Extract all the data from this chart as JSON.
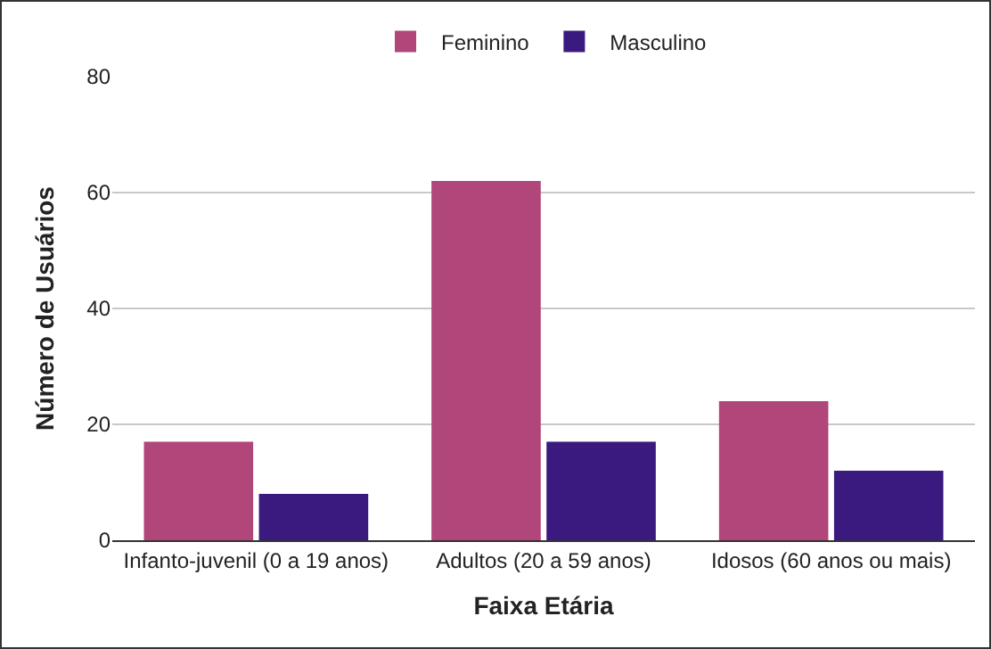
{
  "chart_data": {
    "type": "bar",
    "xlabel": "Faixa Etária",
    "ylabel": "Número de Usuários",
    "categories": [
      "Infanto-juvenil (0 a 19 anos)",
      "Adultos (20 a 59 anos)",
      "Idosos (60 anos ou mais)"
    ],
    "series": [
      {
        "name": "Feminino",
        "color": "#b0467a",
        "values": [
          17,
          62,
          24
        ]
      },
      {
        "name": "Masculino",
        "color": "#3a1a7e",
        "values": [
          8,
          17,
          12
        ]
      }
    ],
    "ylim": [
      0,
      80
    ],
    "yticks": [
      0,
      20,
      40,
      60,
      80
    ],
    "grid": "y",
    "legend": "top"
  }
}
